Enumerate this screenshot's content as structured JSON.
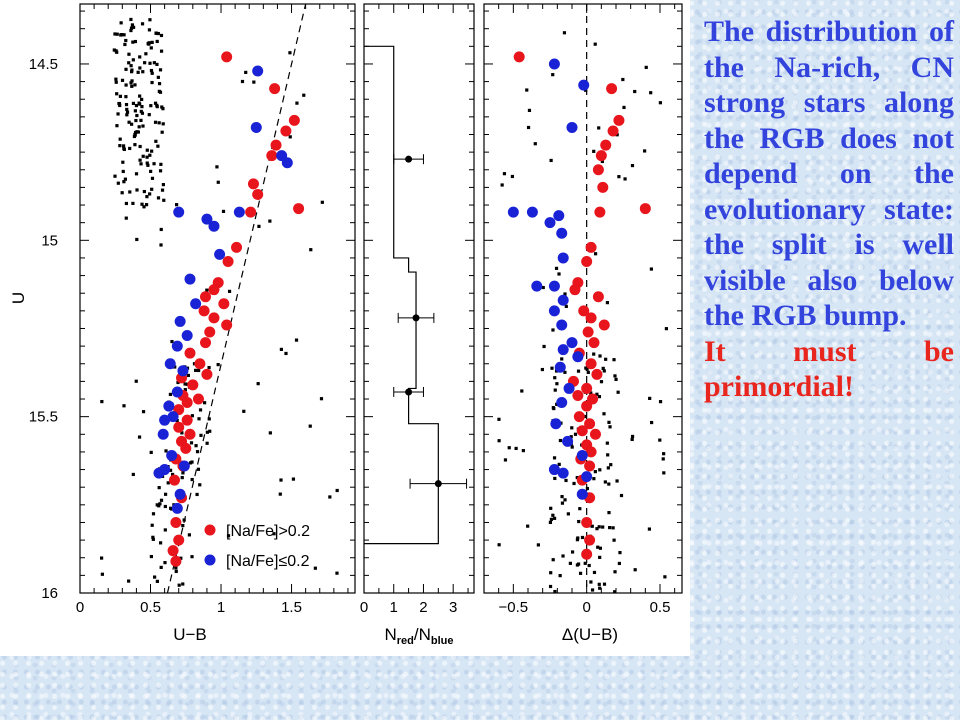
{
  "slide_text": {
    "main": "The distribution of the Na-rich, CN strong stars along the RGB does not depend on the evolutionary state: the split is well visible also below the RGB bump.",
    "conclusion": "It must be primordial!"
  },
  "colors": {
    "text_blue": "#3344dd",
    "text_red": "#e8261e",
    "point_red": "#e8151c",
    "point_blue": "#1a22d6",
    "point_black": "#000000",
    "background": "#d7e6f5"
  },
  "chart_data": [
    {
      "id": "cmd",
      "type": "scatter",
      "xlabel": "U−B",
      "ylabel": "U",
      "xlim": [
        0,
        1.95
      ],
      "ylim": [
        16,
        14.33
      ],
      "y_inverted": true,
      "xticks": [
        0,
        0.5,
        1,
        1.5
      ],
      "xtick_labels": [
        "0",
        "0.5",
        "1",
        "1.5"
      ],
      "yticks": [
        14.5,
        15,
        15.5,
        16
      ],
      "ytick_labels": [
        "14.5",
        "15",
        "15.5",
        "16"
      ],
      "ridge_line": [
        [
          0.62,
          16.0
        ],
        [
          1.6,
          14.33
        ]
      ],
      "legend": [
        {
          "label": "[Na/Fe]>0.2",
          "color": "#e8151c"
        },
        {
          "label": "[Na/Fe]≤0.2",
          "color": "#1a22d6"
        }
      ],
      "legend_position": "bottom-right",
      "series": [
        {
          "name": "[Na/Fe]>0.2",
          "color": "#e8151c",
          "marker": "circle",
          "points": [
            [
              1.04,
              14.48
            ],
            [
              1.38,
              14.57
            ],
            [
              1.52,
              14.66
            ],
            [
              1.46,
              14.69
            ],
            [
              1.39,
              14.73
            ],
            [
              1.36,
              14.76
            ],
            [
              1.23,
              14.84
            ],
            [
              1.26,
              14.87
            ],
            [
              1.55,
              14.91
            ],
            [
              1.21,
              14.92
            ],
            [
              1.11,
              15.02
            ],
            [
              1.05,
              15.06
            ],
            [
              0.98,
              15.12
            ],
            [
              0.95,
              15.14
            ],
            [
              0.89,
              15.16
            ],
            [
              1.02,
              15.18
            ],
            [
              0.88,
              15.2
            ],
            [
              0.95,
              15.22
            ],
            [
              1.04,
              15.24
            ],
            [
              0.92,
              15.26
            ],
            [
              0.89,
              15.29
            ],
            [
              0.78,
              15.32
            ],
            [
              0.85,
              15.35
            ],
            [
              0.9,
              15.38
            ],
            [
              0.72,
              15.39
            ],
            [
              0.8,
              15.41
            ],
            [
              0.73,
              15.44
            ],
            [
              0.84,
              15.45
            ],
            [
              0.76,
              15.46
            ],
            [
              0.7,
              15.48
            ],
            [
              0.76,
              15.51
            ],
            [
              0.7,
              15.53
            ],
            [
              0.78,
              15.55
            ],
            [
              0.72,
              15.57
            ],
            [
              0.75,
              15.59
            ],
            [
              0.68,
              15.62
            ],
            [
              0.73,
              15.64
            ],
            [
              0.67,
              15.68
            ],
            [
              0.72,
              15.73
            ],
            [
              0.68,
              15.8
            ],
            [
              0.7,
              15.85
            ],
            [
              0.66,
              15.88
            ],
            [
              0.68,
              15.91
            ]
          ]
        },
        {
          "name": "[Na/Fe]≤0.2",
          "color": "#1a22d6",
          "marker": "circle",
          "points": [
            [
              1.26,
              14.52
            ],
            [
              1.25,
              14.68
            ],
            [
              1.47,
              14.78
            ],
            [
              1.43,
              14.76
            ],
            [
              0.7,
              14.92
            ],
            [
              0.9,
              14.94
            ],
            [
              1.13,
              14.92
            ],
            [
              0.95,
              14.96
            ],
            [
              0.99,
              15.04
            ],
            [
              0.78,
              15.11
            ],
            [
              0.82,
              15.18
            ],
            [
              0.71,
              15.23
            ],
            [
              0.76,
              15.27
            ],
            [
              0.69,
              15.3
            ],
            [
              0.64,
              15.35
            ],
            [
              0.73,
              15.37
            ],
            [
              0.69,
              15.43
            ],
            [
              0.63,
              15.47
            ],
            [
              0.66,
              15.5
            ],
            [
              0.6,
              15.51
            ],
            [
              0.59,
              15.55
            ],
            [
              0.65,
              15.61
            ],
            [
              0.74,
              15.64
            ],
            [
              0.6,
              15.65
            ],
            [
              0.56,
              15.66
            ],
            [
              0.71,
              15.72
            ],
            [
              0.69,
              15.76
            ]
          ]
        },
        {
          "name": "",
          "color": "#000000",
          "marker": "square",
          "seed": 7
        }
      ]
    },
    {
      "id": "ratio",
      "type": "step",
      "xlabel": "N",
      "xlabel_sub1": "red",
      "xlabel_mid": "/N",
      "xlabel_sub2": "blue",
      "xlim": [
        0,
        3.7
      ],
      "ylim": [
        16,
        14.33
      ],
      "xticks": [
        0,
        1,
        2,
        3
      ],
      "xtick_labels": [
        "0",
        "1",
        "2",
        "3"
      ],
      "steps": [
        {
          "y_top": 14.45,
          "y_bottom": 15.05,
          "value": 1.0
        },
        {
          "y_top": 15.05,
          "y_bottom": 15.09,
          "value": 1.5
        },
        {
          "y_top": 15.09,
          "y_bottom": 15.42,
          "value": 1.75
        },
        {
          "y_top": 15.42,
          "y_bottom": 15.52,
          "value": 1.5
        },
        {
          "y_top": 15.52,
          "y_bottom": 15.86,
          "value": 2.5
        }
      ],
      "histogram_floor_y": 15.86,
      "points": [
        {
          "y": 14.77,
          "x": 1.5,
          "xerr": 0.5
        },
        {
          "y": 15.22,
          "x": 1.75,
          "xerr": 0.6
        },
        {
          "y": 15.43,
          "x": 1.5,
          "xerr": 0.5
        },
        {
          "y": 15.69,
          "x": 2.5,
          "xerr": 0.95
        }
      ]
    },
    {
      "id": "delta",
      "type": "scatter",
      "xlabel": "Δ(U−B)",
      "xlim": [
        -0.7,
        0.65
      ],
      "ylim": [
        16,
        14.33
      ],
      "xticks": [
        -0.5,
        0,
        0.5
      ],
      "xtick_labels": [
        "−0.5",
        "0",
        "0.5"
      ],
      "zero_line": 0,
      "series": [
        {
          "name": "[Na/Fe]>0.2",
          "color": "#e8151c",
          "marker": "circle",
          "points": [
            [
              -0.46,
              14.48
            ],
            [
              0.17,
              14.57
            ],
            [
              0.22,
              14.66
            ],
            [
              0.18,
              14.69
            ],
            [
              0.13,
              14.73
            ],
            [
              0.1,
              14.76
            ],
            [
              0.08,
              14.8
            ],
            [
              0.11,
              14.85
            ],
            [
              0.4,
              14.91
            ],
            [
              0.09,
              14.92
            ],
            [
              0.03,
              15.02
            ],
            [
              0.0,
              15.06
            ],
            [
              -0.06,
              15.12
            ],
            [
              -0.08,
              15.14
            ],
            [
              0.08,
              15.16
            ],
            [
              -0.02,
              15.2
            ],
            [
              0.03,
              15.22
            ],
            [
              0.12,
              15.24
            ],
            [
              0.01,
              15.26
            ],
            [
              0.05,
              15.29
            ],
            [
              -0.05,
              15.32
            ],
            [
              0.03,
              15.35
            ],
            [
              0.07,
              15.38
            ],
            [
              -0.09,
              15.4
            ],
            [
              0.0,
              15.42
            ],
            [
              -0.06,
              15.44
            ],
            [
              0.04,
              15.45
            ],
            [
              0.0,
              15.47
            ],
            [
              -0.05,
              15.5
            ],
            [
              0.02,
              15.52
            ],
            [
              -0.03,
              15.54
            ],
            [
              0.06,
              15.55
            ],
            [
              0.0,
              15.58
            ],
            [
              0.03,
              15.6
            ],
            [
              -0.04,
              15.62
            ],
            [
              0.02,
              15.64
            ],
            [
              -0.03,
              15.68
            ],
            [
              0.02,
              15.73
            ],
            [
              0.0,
              15.8
            ],
            [
              0.02,
              15.85
            ],
            [
              0.0,
              15.89
            ]
          ]
        },
        {
          "name": "[Na/Fe]≤0.2",
          "color": "#1a22d6",
          "marker": "circle",
          "points": [
            [
              -0.22,
              14.5
            ],
            [
              -0.02,
              14.56
            ],
            [
              -0.1,
              14.68
            ],
            [
              -0.5,
              14.92
            ],
            [
              -0.37,
              14.92
            ],
            [
              -0.25,
              14.95
            ],
            [
              -0.19,
              14.93
            ],
            [
              -0.17,
              14.98
            ],
            [
              -0.16,
              15.05
            ],
            [
              -0.34,
              15.13
            ],
            [
              -0.22,
              15.13
            ],
            [
              -0.16,
              15.17
            ],
            [
              -0.22,
              15.2
            ],
            [
              -0.17,
              15.24
            ],
            [
              -0.1,
              15.29
            ],
            [
              -0.16,
              15.31
            ],
            [
              -0.06,
              15.33
            ],
            [
              -0.18,
              15.36
            ],
            [
              -0.12,
              15.42
            ],
            [
              -0.17,
              15.46
            ],
            [
              -0.21,
              15.52
            ],
            [
              -0.13,
              15.57
            ],
            [
              -0.03,
              15.61
            ],
            [
              -0.22,
              15.65
            ],
            [
              -0.16,
              15.66
            ],
            [
              0.0,
              15.67
            ],
            [
              -0.03,
              15.72
            ]
          ]
        },
        {
          "name": "",
          "color": "#000000",
          "marker": "square",
          "seed": 13
        }
      ]
    }
  ]
}
